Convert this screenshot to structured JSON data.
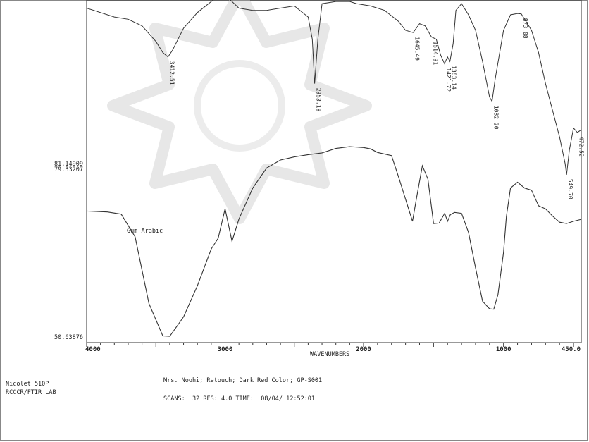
{
  "chart_data": {
    "type": "line",
    "instrument": [
      "Nicolet 510P",
      "RCCCR/FTIR LAB"
    ],
    "sample_label": "Gum Arabic",
    "description": "Mrs. Noohi; Retouch; Dark Red Color; GP-S001",
    "scan_info": {
      "scans_label": "SCANS:",
      "scans": "32",
      "res_label": "RES:",
      "res": "4.0",
      "time_label": "TIME:",
      "time": "08/04/ 12:52:01"
    },
    "xlabel": "WAVENUMBERS",
    "xlim": [
      4000,
      450
    ],
    "x_ticks": [
      {
        "value": 4000,
        "label": "4000"
      },
      {
        "value": 3000,
        "label": "3000"
      },
      {
        "value": 2000,
        "label": "2000"
      },
      {
        "value": 1000,
        "label": "1000"
      },
      {
        "value": 450,
        "label": "450.0"
      }
    ],
    "y_labels": [
      {
        "value": 81.14909,
        "label": "81.14909"
      },
      {
        "value": 79.33207,
        "label": "79.33207"
      },
      {
        "value": 50.63876,
        "label": "50.63876"
      }
    ],
    "peaks_upper": [
      {
        "x": 3412.51,
        "label": "3412.51"
      },
      {
        "x": 2353.18,
        "label": "2353.18"
      },
      {
        "x": 1645.49,
        "label": "1645.49"
      },
      {
        "x": 1514.31,
        "label": "1514.31"
      },
      {
        "x": 1421.72,
        "label": "1421.72"
      },
      {
        "x": 1383.14,
        "label": "1383.14"
      },
      {
        "x": 1082.2,
        "label": "1082.20"
      },
      {
        "x": 873.08,
        "label": "873.08"
      },
      {
        "x": 549.7,
        "label": "549.70"
      },
      {
        "x": 472.52,
        "label": "472.52"
      }
    ],
    "series": [
      {
        "name": "Gum Arabic",
        "x": [
          4000,
          3850,
          3750,
          3650,
          3550,
          3450,
          3400,
          3300,
          3200,
          3100,
          3050,
          3000,
          2950,
          2900,
          2800,
          2700,
          2600,
          2500,
          2400,
          2300,
          2200,
          2100,
          2000,
          1950,
          1900,
          1800,
          1750,
          1700,
          1650,
          1620,
          1580,
          1540,
          1500,
          1460,
          1420,
          1400,
          1380,
          1350,
          1300,
          1250,
          1200,
          1150,
          1100,
          1070,
          1040,
          1000,
          980,
          950,
          900,
          850,
          800,
          750,
          700,
          650,
          600,
          550,
          500,
          450
        ],
        "y": [
          79.3,
          79.1,
          78.6,
          73.5,
          58.5,
          51.2,
          51.1,
          55.5,
          62.5,
          70.8,
          73.2,
          79.8,
          72.5,
          77.5,
          84.5,
          89.0,
          90.8,
          91.5,
          92.0,
          92.4,
          93.4,
          93.8,
          93.6,
          93.3,
          92.5,
          91.8,
          87.0,
          82.0,
          77.0,
          82.5,
          89.5,
          86.5,
          76.5,
          76.6,
          78.8,
          77.0,
          78.5,
          79.0,
          78.8,
          74.5,
          66.5,
          59.0,
          57.3,
          57.2,
          60.5,
          70.0,
          78.0,
          84.5,
          85.8,
          84.5,
          84.0,
          80.5,
          79.8,
          78.2,
          76.8,
          76.5,
          77.0,
          77.4
        ]
      },
      {
        "name": "",
        "x": [
          4000,
          3800,
          3700,
          3600,
          3500,
          3450,
          3412.51,
          3380,
          3300,
          3200,
          3100,
          3050,
          3000,
          2950,
          2900,
          2800,
          2700,
          2600,
          2500,
          2400,
          2370,
          2353.18,
          2330,
          2300,
          2200,
          2100,
          2050,
          1950,
          1850,
          1750,
          1700,
          1645.49,
          1600,
          1560,
          1514.31,
          1480,
          1450,
          1421.72,
          1400,
          1383.14,
          1360,
          1340,
          1300,
          1250,
          1200,
          1150,
          1100,
          1082.2,
          1060,
          1000,
          950,
          900,
          873.08,
          800,
          750,
          700,
          650,
          600,
          560,
          549.7,
          530,
          500,
          472.52,
          450
        ],
        "y": [
          125,
          123,
          122.5,
          121,
          117.5,
          115,
          114,
          115.5,
          120.5,
          124,
          126.5,
          127.5,
          127.5,
          126.5,
          125,
          124.5,
          124.5,
          125,
          125.5,
          123,
          118,
          108,
          118,
          126,
          126.5,
          126.5,
          126,
          125.5,
          124.5,
          122,
          120,
          119.5,
          121.5,
          121,
          118.5,
          118,
          114.5,
          112.5,
          114,
          113,
          117,
          124.5,
          126,
          123.5,
          120,
          113,
          105,
          104,
          109,
          120,
          123.5,
          123.8,
          123.7,
          120,
          115,
          108,
          102,
          96,
          90,
          87.5,
          93,
          98,
          97,
          97.5
        ]
      }
    ]
  }
}
